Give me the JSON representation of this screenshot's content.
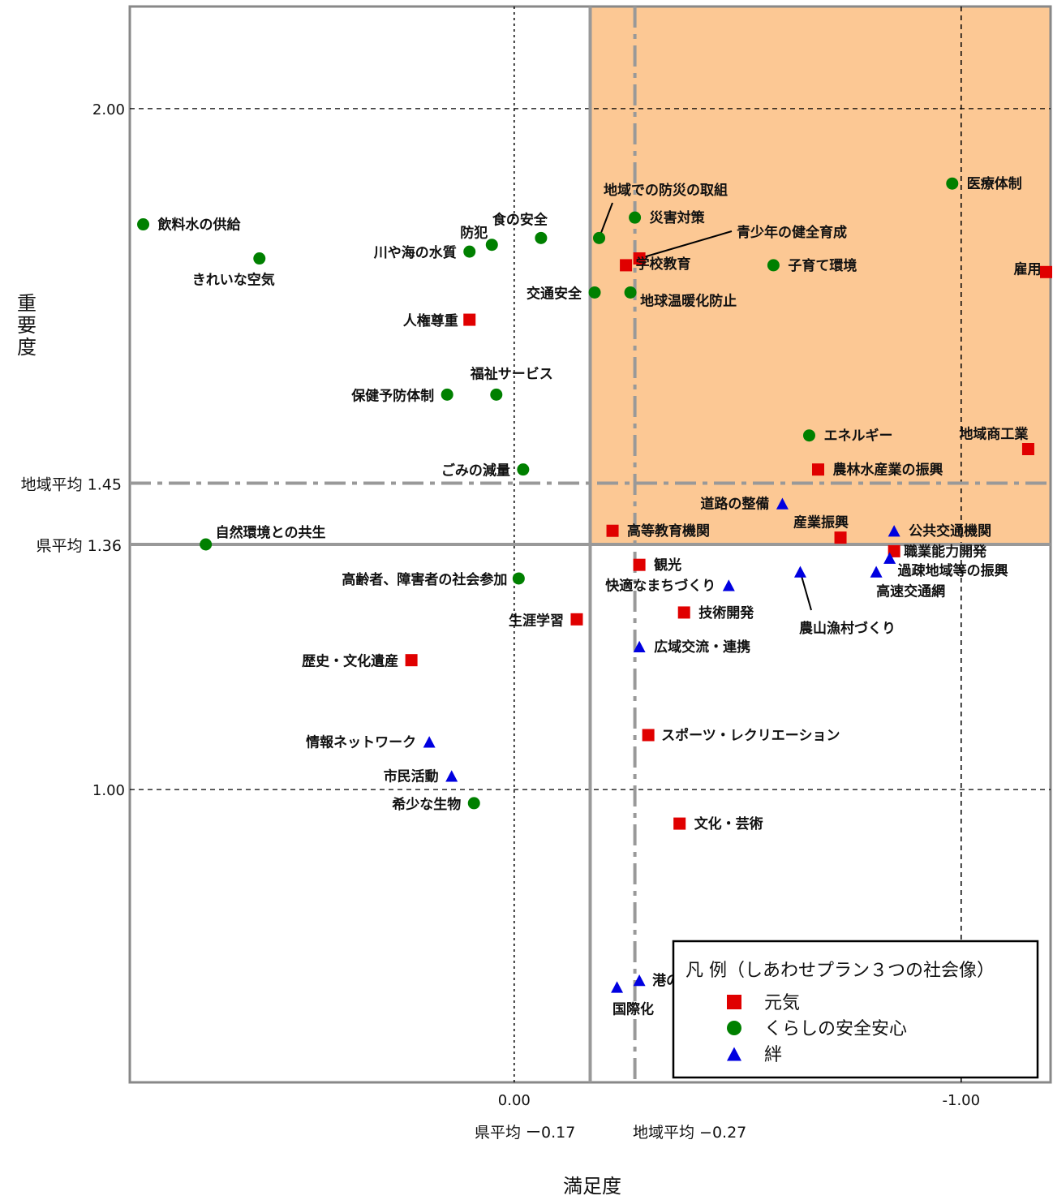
{
  "chart_data": {
    "type": "scatter",
    "xlabel": "満足度",
    "ylabel": "重要度",
    "x_reversed": true,
    "xlim": [
      0.86,
      -1.2
    ],
    "ylim": [
      0.57,
      2.15
    ],
    "x_ticks": [
      {
        "value": 0.0,
        "label": "0.00"
      },
      {
        "value": -1.0,
        "label": "-1.00"
      }
    ],
    "y_ticks": [
      {
        "value": 2.0,
        "label": "2.00"
      },
      {
        "value": 1.0,
        "label": "1.00"
      }
    ],
    "reference_lines": {
      "x_pref": {
        "value": -0.17,
        "label": "県平均 ー0.17"
      },
      "x_region": {
        "value": -0.27,
        "label": "地域平均 −0.27"
      },
      "y_region": {
        "value": 1.45,
        "label": "地域平均 1.45"
      },
      "y_pref": {
        "value": 1.36,
        "label": "県平均 1.36"
      }
    },
    "highlight_region": {
      "x_from": -0.17,
      "x_to": -1.2,
      "y_from": 1.36,
      "y_to": 2.15,
      "color": "#fcc894"
    },
    "legend": {
      "title": "凡 例（しあわせプラン３つの社会像）",
      "placement": "bottom-right"
    },
    "series": [
      {
        "name": "元気",
        "marker": "square",
        "color": "#e00000",
        "points": [
          {
            "label": "青少年の健全育成",
            "x": -0.28,
            "y": 1.78
          },
          {
            "label": "学校教育",
            "x": -0.25,
            "y": 1.77
          },
          {
            "label": "雇用",
            "x": -1.19,
            "y": 1.76
          },
          {
            "label": "人権尊重",
            "x": 0.1,
            "y": 1.69
          },
          {
            "label": "地域商工業",
            "x": -1.15,
            "y": 1.5
          },
          {
            "label": "農林水産業の振興",
            "x": -0.68,
            "y": 1.47
          },
          {
            "label": "高等教育機関",
            "x": -0.22,
            "y": 1.38
          },
          {
            "label": "産業振興",
            "x": -0.73,
            "y": 1.37
          },
          {
            "label": "職業能力開発",
            "x": -0.85,
            "y": 1.35
          },
          {
            "label": "観光",
            "x": -0.28,
            "y": 1.33
          },
          {
            "label": "技術開発",
            "x": -0.38,
            "y": 1.26
          },
          {
            "label": "生涯学習",
            "x": -0.14,
            "y": 1.25
          },
          {
            "label": "歴史・文化遺産",
            "x": 0.23,
            "y": 1.19
          },
          {
            "label": "スポーツ・レクリエーション",
            "x": -0.3,
            "y": 1.08
          },
          {
            "label": "文化・芸術",
            "x": -0.37,
            "y": 0.95
          }
        ]
      },
      {
        "name": "くらしの安全安心",
        "marker": "circle",
        "color": "#008000",
        "points": [
          {
            "label": "医療体制",
            "x": -0.98,
            "y": 1.89
          },
          {
            "label": "災害対策",
            "x": -0.27,
            "y": 1.84
          },
          {
            "label": "飲料水の供給",
            "x": 0.83,
            "y": 1.83
          },
          {
            "label": "食の安全",
            "x": -0.06,
            "y": 1.81
          },
          {
            "label": "地域での防災の取組",
            "x": -0.19,
            "y": 1.81
          },
          {
            "label": "防犯",
            "x": 0.05,
            "y": 1.8
          },
          {
            "label": "川や海の水質",
            "x": 0.1,
            "y": 1.79
          },
          {
            "label": "子育て環境",
            "x": -0.58,
            "y": 1.77
          },
          {
            "label": "きれいな空気",
            "x": 0.57,
            "y": 1.78
          },
          {
            "label": "交通安全",
            "x": -0.18,
            "y": 1.73
          },
          {
            "label": "地球温暖化防止",
            "x": -0.26,
            "y": 1.73
          },
          {
            "label": "福祉サービス",
            "x": 0.04,
            "y": 1.58
          },
          {
            "label": "保健予防体制",
            "x": 0.15,
            "y": 1.58
          },
          {
            "label": "エネルギー",
            "x": -0.66,
            "y": 1.52
          },
          {
            "label": "ごみの減量",
            "x": -0.02,
            "y": 1.47
          },
          {
            "label": "自然環境との共生",
            "x": 0.69,
            "y": 1.36
          },
          {
            "label": "高齢者、障害者の社会参加",
            "x": -0.01,
            "y": 1.31
          },
          {
            "label": "希少な生物",
            "x": 0.09,
            "y": 0.98
          }
        ]
      },
      {
        "name": "絆",
        "marker": "triangle",
        "color": "#0000e0",
        "points": [
          {
            "label": "道路の整備",
            "x": -0.6,
            "y": 1.42
          },
          {
            "label": "公共交通機関",
            "x": -0.85,
            "y": 1.38
          },
          {
            "label": "過疎地域等の振興",
            "x": -0.84,
            "y": 1.34
          },
          {
            "label": "農山漁村づくり",
            "x": -0.64,
            "y": 1.32
          },
          {
            "label": "高速交通網",
            "x": -0.81,
            "y": 1.32
          },
          {
            "label": "快適なまちづくり",
            "x": -0.48,
            "y": 1.3
          },
          {
            "label": "広域交流・連携",
            "x": -0.28,
            "y": 1.21
          },
          {
            "label": "情報ネットワーク",
            "x": 0.19,
            "y": 1.07
          },
          {
            "label": "市民活動",
            "x": 0.14,
            "y": 1.02
          },
          {
            "label": "港の整備",
            "x": -0.28,
            "y": 0.72
          },
          {
            "label": "国際化",
            "x": -0.23,
            "y": 0.71
          }
        ]
      }
    ]
  }
}
